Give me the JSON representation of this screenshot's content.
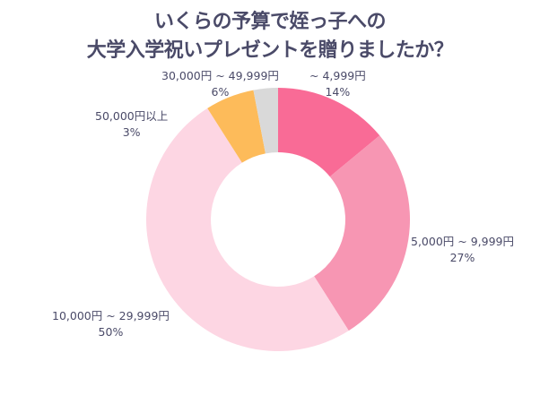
{
  "chart_data": {
    "type": "pie",
    "donut": true,
    "title_lines": [
      "いくらの予算で姪っ子への",
      "大学入学祝いプレゼントを贈りましたか？"
    ],
    "slices": [
      {
        "label": "~ 4,999円",
        "value": 14,
        "value_label": "14%",
        "color": "#f96b96"
      },
      {
        "label": "5,000円 ~ 9,999円",
        "value": 27,
        "value_label": "27%",
        "color": "#f796b3"
      },
      {
        "label": "10,000円 ~ 29,999円",
        "value": 50,
        "value_label": "50%",
        "color": "#fdd6e3"
      },
      {
        "label": "30,000円 ~ 49,999円",
        "value": 6,
        "value_label": "6%",
        "color": "#fdbb5a"
      },
      {
        "label": "50,000円以上",
        "value": 3,
        "value_label": "3%",
        "color": "#d9d9d9"
      }
    ],
    "legend": "none"
  }
}
